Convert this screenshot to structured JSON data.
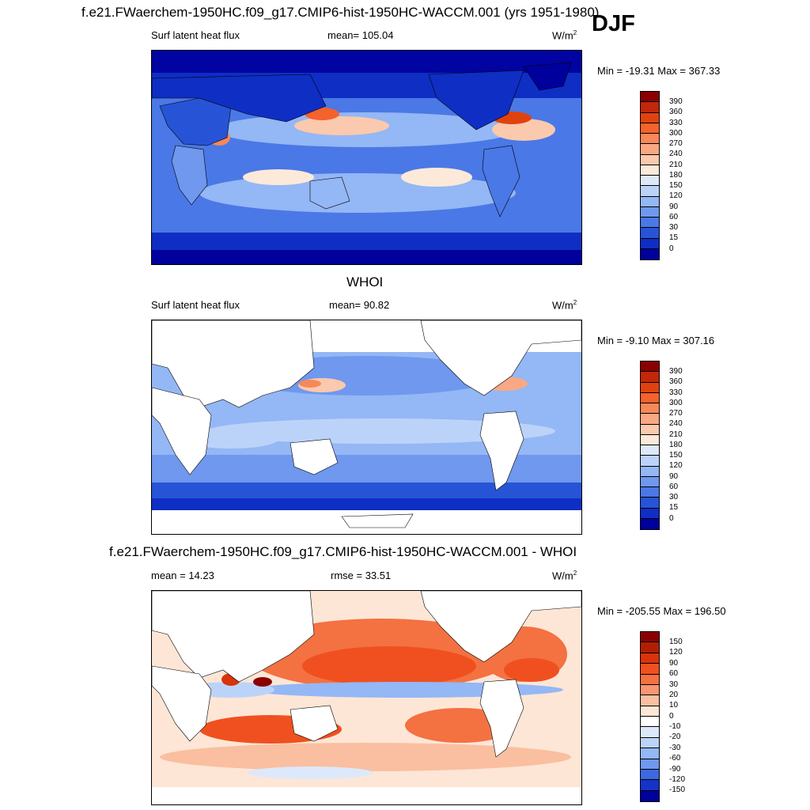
{
  "main_title": "f.e21.FWaerchem-1950HC.f09_g17.CMIP6-hist-1950HC-WACCM.001 (yrs 1951-1980)",
  "season": "DJF",
  "panels": [
    {
      "left_label": "Surf latent heat flux",
      "center_label": "mean= 105.04",
      "units_base": "W/m",
      "units_exp": "2",
      "minmax": "Min = -19.31 Max = 367.33",
      "colorbar": {
        "labels": [
          "390",
          "360",
          "330",
          "300",
          "270",
          "240",
          "210",
          "180",
          "150",
          "120",
          "90",
          "60",
          "30",
          "15",
          "0"
        ],
        "colors": [
          "#8b0000",
          "#c1270a",
          "#e0420f",
          "#f5622c",
          "#f8875a",
          "#f9a884",
          "#fbc9ad",
          "#fde9d9",
          "#dde9fb",
          "#bcd3f9",
          "#94b7f5",
          "#6f98ee",
          "#4a78e6",
          "#2754d6",
          "#0f2ec4",
          "#00009c"
        ]
      }
    },
    {
      "title": "WHOI",
      "left_label": "Surf latent heat flux",
      "center_label": "mean=  90.82",
      "units_base": "W/m",
      "units_exp": "2",
      "minmax": "Min =  -9.10 Max = 307.16",
      "colorbar": {
        "labels": [
          "390",
          "360",
          "330",
          "300",
          "270",
          "240",
          "210",
          "180",
          "150",
          "120",
          "90",
          "60",
          "30",
          "15",
          "0"
        ],
        "colors": [
          "#8b0000",
          "#c1270a",
          "#e0420f",
          "#f5622c",
          "#f8875a",
          "#f9a884",
          "#fbc9ad",
          "#fde9d9",
          "#dde9fb",
          "#bcd3f9",
          "#94b7f5",
          "#6f98ee",
          "#4a78e6",
          "#2754d6",
          "#0f2ec4",
          "#00009c"
        ]
      }
    },
    {
      "title": "f.e21.FWaerchem-1950HC.f09_g17.CMIP6-hist-1950HC-WACCM.001 - WHOI",
      "left_label": "mean =  14.23",
      "center_label": "rmse =  33.51",
      "units_base": "W/m",
      "units_exp": "2",
      "minmax": "Min = -205.55 Max = 196.50",
      "colorbar": {
        "labels": [
          "150",
          "120",
          "90",
          "60",
          "30",
          "20",
          "10",
          "0",
          "-10",
          "-20",
          "-30",
          "-60",
          "-90",
          "-120",
          "-150"
        ],
        "colors": [
          "#8b0000",
          "#b01f05",
          "#d8340c",
          "#f0501f",
          "#f47141",
          "#f79670",
          "#fabfa0",
          "#fde6d6",
          "#ffffff",
          "#dde9fb",
          "#bcd3f9",
          "#94b7f5",
          "#6f98ee",
          "#3d68e0",
          "#1434c8",
          "#00009c"
        ]
      }
    }
  ]
}
